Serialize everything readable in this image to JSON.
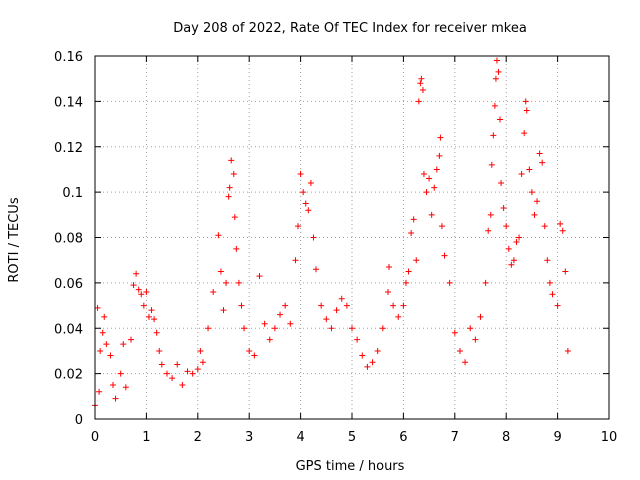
{
  "chart_data": {
    "type": "scatter",
    "title": "Day 208 of 2022, Rate Of TEC Index for receiver mkea",
    "xlabel": "GPS time / hours",
    "ylabel": "ROTI / TECUs",
    "xlim": [
      0,
      10
    ],
    "ylim": [
      0,
      0.16
    ],
    "grid": true,
    "marker": "+",
    "color": "#ff0000",
    "x_ticks": [
      {
        "value": 0,
        "label": "0"
      },
      {
        "value": 1,
        "label": "1"
      },
      {
        "value": 2,
        "label": "2"
      },
      {
        "value": 3,
        "label": "3"
      },
      {
        "value": 4,
        "label": "4"
      },
      {
        "value": 5,
        "label": "5"
      },
      {
        "value": 6,
        "label": "6"
      },
      {
        "value": 7,
        "label": "7"
      },
      {
        "value": 8,
        "label": "8"
      },
      {
        "value": 9,
        "label": "9"
      },
      {
        "value": 10,
        "label": "10"
      }
    ],
    "y_ticks": [
      {
        "value": 0,
        "label": "0"
      },
      {
        "value": 0.02,
        "label": "0.02"
      },
      {
        "value": 0.04,
        "label": "0.04"
      },
      {
        "value": 0.06,
        "label": "0.06"
      },
      {
        "value": 0.08,
        "label": "0.08"
      },
      {
        "value": 0.1,
        "label": "0.1"
      },
      {
        "value": 0.12,
        "label": "0.12"
      },
      {
        "value": 0.14,
        "label": "0.14"
      },
      {
        "value": 0.16,
        "label": "0.16"
      }
    ],
    "series": [
      {
        "name": "ROTI",
        "points": [
          [
            0.0,
            0.006
          ],
          [
            0.05,
            0.049
          ],
          [
            0.08,
            0.012
          ],
          [
            0.1,
            0.03
          ],
          [
            0.15,
            0.038
          ],
          [
            0.18,
            0.045
          ],
          [
            0.22,
            0.033
          ],
          [
            0.3,
            0.028
          ],
          [
            0.35,
            0.015
          ],
          [
            0.4,
            0.009
          ],
          [
            0.5,
            0.02
          ],
          [
            0.55,
            0.033
          ],
          [
            0.6,
            0.014
          ],
          [
            0.7,
            0.035
          ],
          [
            0.75,
            0.059
          ],
          [
            0.8,
            0.064
          ],
          [
            0.85,
            0.057
          ],
          [
            0.9,
            0.055
          ],
          [
            0.95,
            0.05
          ],
          [
            1.0,
            0.056
          ],
          [
            1.05,
            0.045
          ],
          [
            1.1,
            0.048
          ],
          [
            1.15,
            0.044
          ],
          [
            1.2,
            0.038
          ],
          [
            1.25,
            0.03
          ],
          [
            1.3,
            0.024
          ],
          [
            1.4,
            0.02
          ],
          [
            1.5,
            0.018
          ],
          [
            1.6,
            0.024
          ],
          [
            1.7,
            0.015
          ],
          [
            1.8,
            0.021
          ],
          [
            1.9,
            0.02
          ],
          [
            2.0,
            0.022
          ],
          [
            2.05,
            0.03
          ],
          [
            2.1,
            0.025
          ],
          [
            2.2,
            0.04
          ],
          [
            2.3,
            0.056
          ],
          [
            2.4,
            0.081
          ],
          [
            2.45,
            0.065
          ],
          [
            2.5,
            0.048
          ],
          [
            2.55,
            0.06
          ],
          [
            2.6,
            0.098
          ],
          [
            2.62,
            0.102
          ],
          [
            2.65,
            0.114
          ],
          [
            2.7,
            0.108
          ],
          [
            2.72,
            0.089
          ],
          [
            2.75,
            0.075
          ],
          [
            2.8,
            0.06
          ],
          [
            2.85,
            0.05
          ],
          [
            2.9,
            0.04
          ],
          [
            3.0,
            0.03
          ],
          [
            3.1,
            0.028
          ],
          [
            3.2,
            0.063
          ],
          [
            3.3,
            0.042
          ],
          [
            3.4,
            0.035
          ],
          [
            3.5,
            0.04
          ],
          [
            3.6,
            0.046
          ],
          [
            3.7,
            0.05
          ],
          [
            3.8,
            0.042
          ],
          [
            3.9,
            0.07
          ],
          [
            3.95,
            0.085
          ],
          [
            4.0,
            0.108
          ],
          [
            4.05,
            0.1
          ],
          [
            4.1,
            0.095
          ],
          [
            4.15,
            0.092
          ],
          [
            4.2,
            0.104
          ],
          [
            4.25,
            0.08
          ],
          [
            4.3,
            0.066
          ],
          [
            4.4,
            0.05
          ],
          [
            4.5,
            0.044
          ],
          [
            4.6,
            0.04
          ],
          [
            4.7,
            0.048
          ],
          [
            4.8,
            0.053
          ],
          [
            4.9,
            0.05
          ],
          [
            5.0,
            0.04
          ],
          [
            5.1,
            0.035
          ],
          [
            5.2,
            0.028
          ],
          [
            5.3,
            0.023
          ],
          [
            5.4,
            0.025
          ],
          [
            5.5,
            0.03
          ],
          [
            5.6,
            0.04
          ],
          [
            5.7,
            0.056
          ],
          [
            5.72,
            0.067
          ],
          [
            5.8,
            0.05
          ],
          [
            5.9,
            0.045
          ],
          [
            6.0,
            0.05
          ],
          [
            6.05,
            0.06
          ],
          [
            6.1,
            0.065
          ],
          [
            6.15,
            0.082
          ],
          [
            6.2,
            0.088
          ],
          [
            6.25,
            0.07
          ],
          [
            6.3,
            0.14
          ],
          [
            6.33,
            0.148
          ],
          [
            6.35,
            0.15
          ],
          [
            6.38,
            0.145
          ],
          [
            6.4,
            0.108
          ],
          [
            6.45,
            0.1
          ],
          [
            6.5,
            0.106
          ],
          [
            6.55,
            0.09
          ],
          [
            6.6,
            0.102
          ],
          [
            6.65,
            0.11
          ],
          [
            6.7,
            0.116
          ],
          [
            6.72,
            0.124
          ],
          [
            6.75,
            0.085
          ],
          [
            6.8,
            0.072
          ],
          [
            6.9,
            0.06
          ],
          [
            7.0,
            0.038
          ],
          [
            7.1,
            0.03
          ],
          [
            7.2,
            0.025
          ],
          [
            7.3,
            0.04
          ],
          [
            7.4,
            0.035
          ],
          [
            7.5,
            0.045
          ],
          [
            7.6,
            0.06
          ],
          [
            7.65,
            0.083
          ],
          [
            7.7,
            0.09
          ],
          [
            7.72,
            0.112
          ],
          [
            7.75,
            0.125
          ],
          [
            7.78,
            0.138
          ],
          [
            7.8,
            0.15
          ],
          [
            7.82,
            0.158
          ],
          [
            7.85,
            0.153
          ],
          [
            7.88,
            0.132
          ],
          [
            7.9,
            0.104
          ],
          [
            7.95,
            0.093
          ],
          [
            8.0,
            0.085
          ],
          [
            8.05,
            0.075
          ],
          [
            8.1,
            0.068
          ],
          [
            8.15,
            0.07
          ],
          [
            8.2,
            0.078
          ],
          [
            8.25,
            0.08
          ],
          [
            8.3,
            0.108
          ],
          [
            8.35,
            0.126
          ],
          [
            8.38,
            0.14
          ],
          [
            8.4,
            0.136
          ],
          [
            8.45,
            0.11
          ],
          [
            8.5,
            0.1
          ],
          [
            8.55,
            0.09
          ],
          [
            8.6,
            0.096
          ],
          [
            8.65,
            0.117
          ],
          [
            8.7,
            0.113
          ],
          [
            8.75,
            0.085
          ],
          [
            8.8,
            0.07
          ],
          [
            8.85,
            0.06
          ],
          [
            8.9,
            0.055
          ],
          [
            9.0,
            0.05
          ],
          [
            9.05,
            0.086
          ],
          [
            9.1,
            0.083
          ],
          [
            9.15,
            0.065
          ],
          [
            9.2,
            0.03
          ]
        ]
      }
    ]
  }
}
